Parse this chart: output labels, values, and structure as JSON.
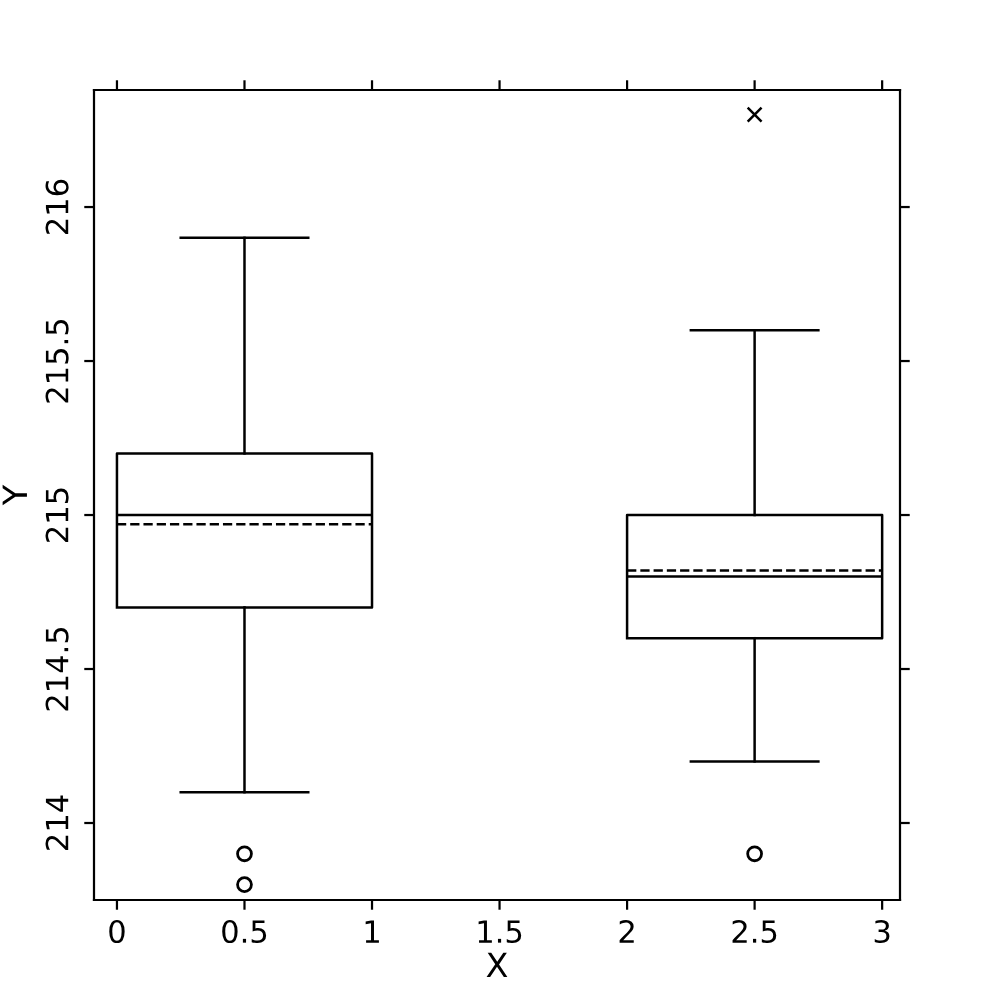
{
  "chart_data": {
    "type": "box",
    "xlabel": "X",
    "ylabel": "Y",
    "x": [
      0.5,
      2.5
    ],
    "boxes": [
      {
        "low": 214.1,
        "q1": 214.7,
        "median": 215.0,
        "q3": 215.2,
        "high": 215.9,
        "mean": 214.97,
        "outliers": [
          213.9,
          213.8
        ]
      },
      {
        "low": 214.2,
        "q1": 214.6,
        "median": 214.8,
        "q3": 215.0,
        "high": 215.6,
        "mean": 214.82,
        "outliers": [
          213.9
        ]
      }
    ],
    "series": [
      {
        "type": "scatter",
        "x": [
          2.5
        ],
        "values": [
          216.3
        ],
        "marker": "cross",
        "color": "#000000"
      }
    ],
    "xlim": [
      -0.09,
      3.07
    ],
    "xticks": [
      0,
      0.5,
      1,
      1.5,
      2,
      2.5,
      3
    ],
    "ylim": [
      213.75,
      216.38
    ],
    "yticks": [
      214,
      214.5,
      215,
      215.5,
      216
    ],
    "grid": false,
    "legend": false
  }
}
